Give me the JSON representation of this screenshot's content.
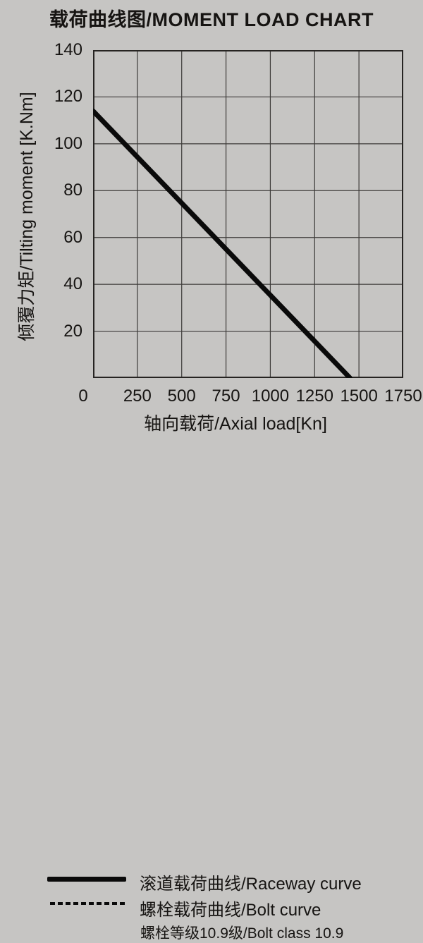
{
  "chart_data": {
    "type": "line",
    "title": "载荷曲线图/MOMENT LOAD CHART",
    "xlabel": "轴向载荷/Axial load[Kn]",
    "ylabel": "倾覆力矩/Tilting moment [K.Nm]",
    "xlim": [
      0,
      1750
    ],
    "ylim": [
      0,
      140
    ],
    "xticks": [
      0,
      250,
      500,
      750,
      1000,
      1250,
      1500,
      1750
    ],
    "yticks": [
      20,
      40,
      60,
      80,
      100,
      120,
      140
    ],
    "grid": true,
    "legend_position": "below-chart-left",
    "series": [
      {
        "name": "滚道载荷曲线/Raceway curve",
        "style": "solid",
        "stroke_width": 7,
        "points": [
          [
            0,
            114
          ],
          [
            1450,
            0
          ]
        ]
      },
      {
        "name": "螺栓载荷曲线/Bolt curve",
        "style": "dashed",
        "stroke_width": 4,
        "points": []
      }
    ],
    "note": "螺栓等级10.9级/Bolt class 10.9"
  },
  "legend": {
    "items": [
      {
        "label": "滚道载荷曲线/Raceway curve",
        "swatch": "solid-thick-line"
      },
      {
        "label": "螺栓载荷曲线/Bolt curve",
        "swatch": "dashed-line"
      }
    ],
    "note": "螺栓等级10.9级/Bolt class 10.9"
  },
  "colors": {
    "background": "#c6c5c3",
    "text": "#161412",
    "grid": "#3c3a38",
    "line": "#0a0a0a"
  }
}
